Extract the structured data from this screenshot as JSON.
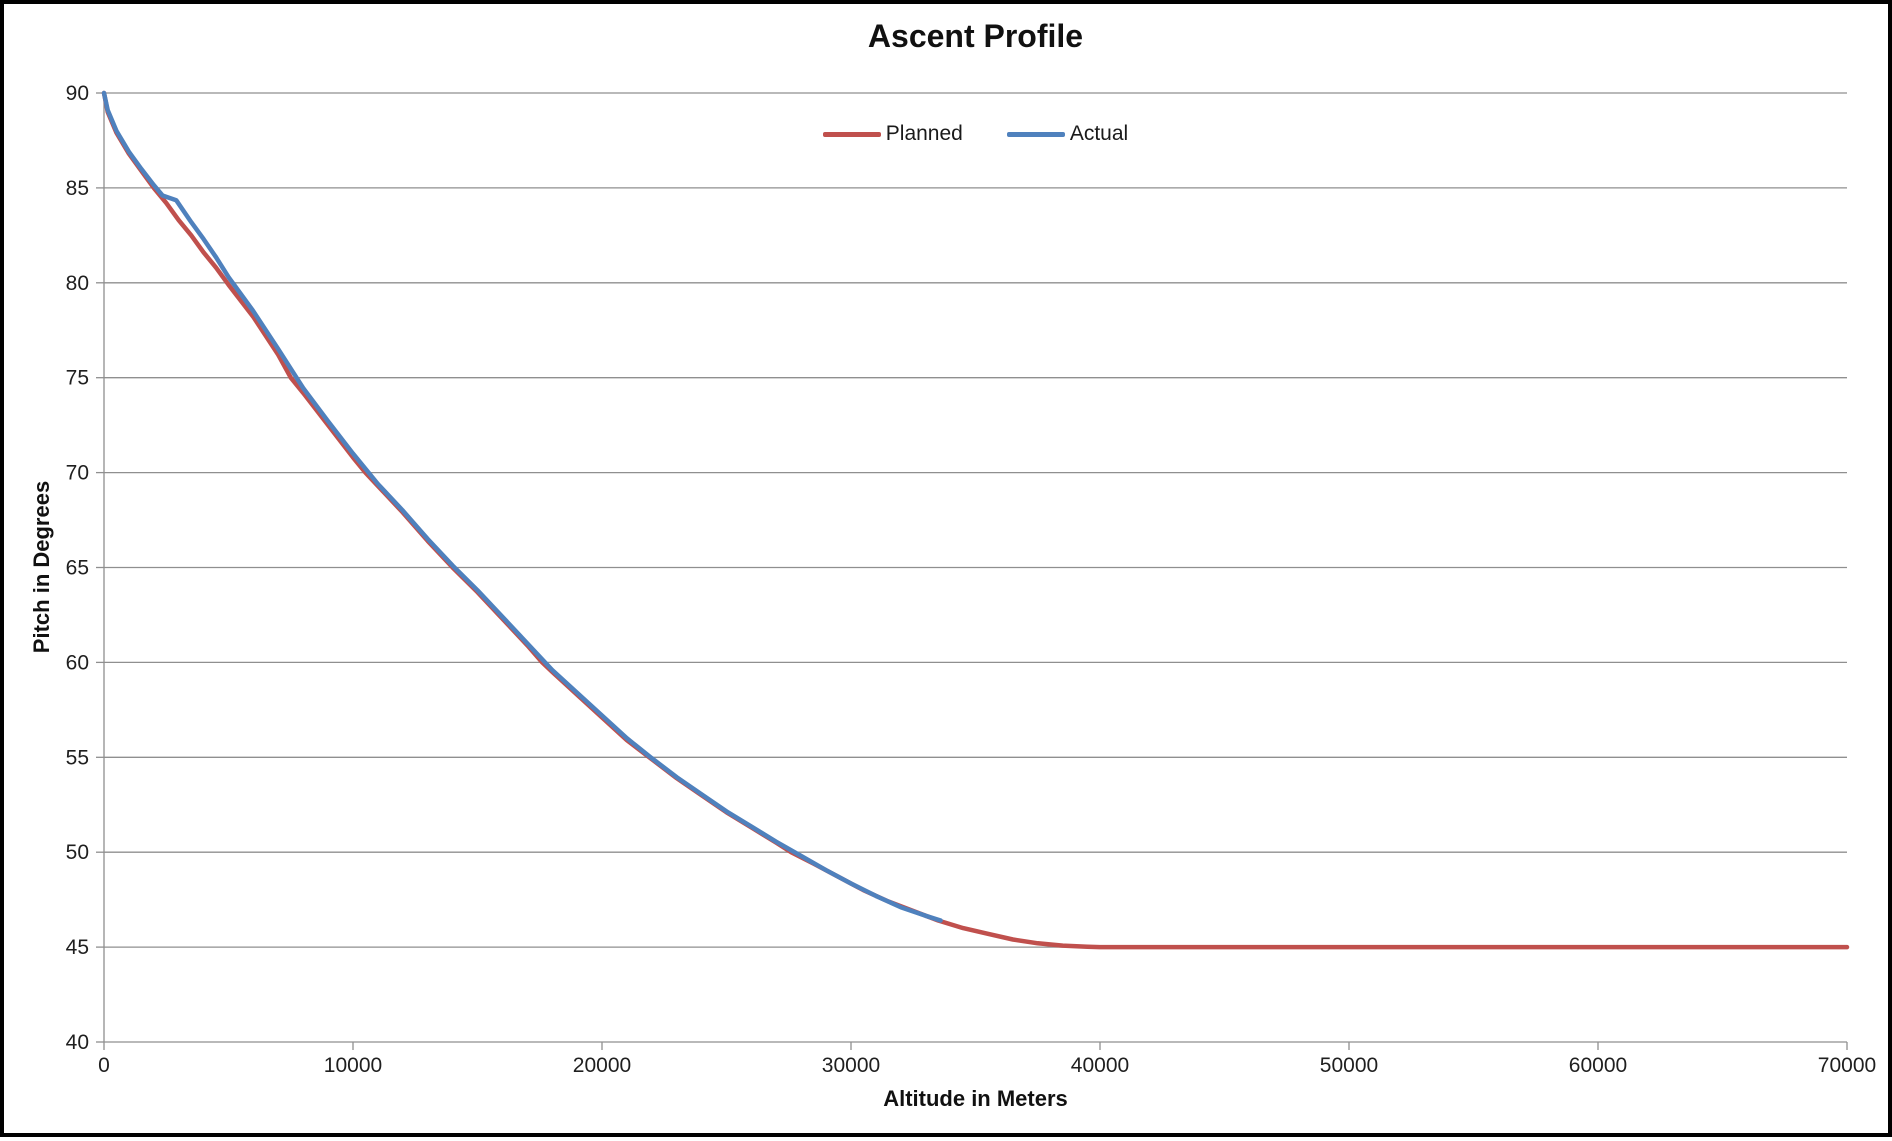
{
  "chart_data": {
    "type": "line",
    "title": "Ascent Profile",
    "xlabel": "Altitude in Meters",
    "ylabel": "Pitch in Degrees",
    "xlim": [
      0,
      70000
    ],
    "ylim": [
      40,
      90
    ],
    "x_tick_labels": [
      "0",
      "10000",
      "20000",
      "30000",
      "40000",
      "50000",
      "60000",
      "70000"
    ],
    "y_tick_labels": [
      "40",
      "45",
      "50",
      "55",
      "60",
      "65",
      "70",
      "75",
      "80",
      "85",
      "90"
    ],
    "grid": "horizontal-gridlines-on",
    "gridline_color": "#8f8f8f",
    "axis_color": "#8f8f8f",
    "legend_position": "top-center",
    "series": [
      {
        "name": "Planned",
        "color": "#C0504D",
        "points": [
          [
            0,
            90
          ],
          [
            150,
            89
          ],
          [
            500,
            87.9
          ],
          [
            1000,
            86.8
          ],
          [
            1500,
            85.9
          ],
          [
            2000,
            85.0
          ],
          [
            2500,
            84.2
          ],
          [
            3000,
            83.3
          ],
          [
            3500,
            82.5
          ],
          [
            4000,
            81.6
          ],
          [
            4500,
            80.8
          ],
          [
            5000,
            79.9
          ],
          [
            6000,
            78.2
          ],
          [
            7000,
            76.2
          ],
          [
            7500,
            75.0
          ],
          [
            8000,
            74.2
          ],
          [
            9000,
            72.5
          ],
          [
            10000,
            70.8
          ],
          [
            10500,
            70.0
          ],
          [
            11000,
            69.3
          ],
          [
            12000,
            67.9
          ],
          [
            13000,
            66.4
          ],
          [
            14000,
            65.0
          ],
          [
            15000,
            63.7
          ],
          [
            16000,
            62.3
          ],
          [
            17000,
            60.9
          ],
          [
            17600,
            60.0
          ],
          [
            18000,
            59.5
          ],
          [
            19000,
            58.3
          ],
          [
            20000,
            57.1
          ],
          [
            21000,
            55.9
          ],
          [
            21900,
            55.0
          ],
          [
            23000,
            53.9
          ],
          [
            24000,
            53.0
          ],
          [
            25000,
            52.1
          ],
          [
            26000,
            51.3
          ],
          [
            27000,
            50.5
          ],
          [
            27600,
            50.0
          ],
          [
            28500,
            49.4
          ],
          [
            29500,
            48.7
          ],
          [
            30500,
            48.0
          ],
          [
            31500,
            47.4
          ],
          [
            32500,
            46.9
          ],
          [
            33500,
            46.4
          ],
          [
            34500,
            46.0
          ],
          [
            35500,
            45.7
          ],
          [
            36500,
            45.4
          ],
          [
            37500,
            45.2
          ],
          [
            38500,
            45.08
          ],
          [
            39500,
            45.02
          ],
          [
            40000,
            45
          ],
          [
            70000,
            45
          ]
        ]
      },
      {
        "name": "Actual",
        "color": "#4F81BD",
        "points": [
          [
            0,
            90
          ],
          [
            150,
            89.1
          ],
          [
            500,
            88.0
          ],
          [
            1000,
            86.9
          ],
          [
            1500,
            86.0
          ],
          [
            2000,
            85.15
          ],
          [
            2350,
            84.6
          ],
          [
            2900,
            84.35
          ],
          [
            3500,
            83.2
          ],
          [
            4000,
            82.3
          ],
          [
            4500,
            81.35
          ],
          [
            5000,
            80.3
          ],
          [
            6000,
            78.5
          ],
          [
            7000,
            76.5
          ],
          [
            8000,
            74.45
          ],
          [
            9000,
            72.7
          ],
          [
            10000,
            71.0
          ],
          [
            11000,
            69.4
          ],
          [
            12000,
            68.0
          ],
          [
            13000,
            66.5
          ],
          [
            14000,
            65.1
          ],
          [
            15000,
            63.8
          ],
          [
            16000,
            62.4
          ],
          [
            17000,
            61.0
          ],
          [
            18000,
            59.6
          ],
          [
            19000,
            58.4
          ],
          [
            20000,
            57.2
          ],
          [
            21000,
            56.0
          ],
          [
            22000,
            54.95
          ],
          [
            23000,
            53.95
          ],
          [
            24000,
            53.05
          ],
          [
            25000,
            52.15
          ],
          [
            26000,
            51.35
          ],
          [
            27000,
            50.55
          ],
          [
            28000,
            49.8
          ],
          [
            29000,
            49.05
          ],
          [
            30000,
            48.35
          ],
          [
            31000,
            47.7
          ],
          [
            32000,
            47.1
          ],
          [
            33000,
            46.65
          ],
          [
            33600,
            46.4
          ]
        ]
      }
    ]
  }
}
